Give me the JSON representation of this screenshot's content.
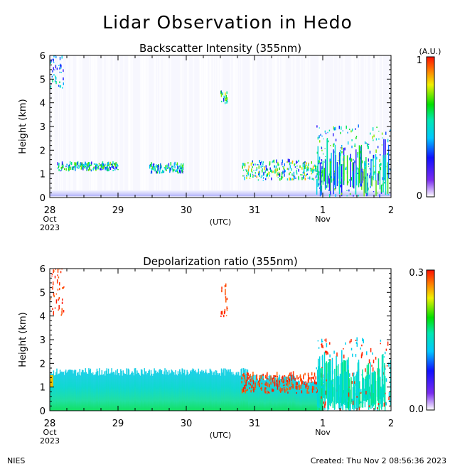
{
  "title": "Lidar Observation in Hedo",
  "footer": {
    "org": "NIES",
    "created": "Created: Thu Nov  2 08:56:36 2023"
  },
  "colors": {
    "axis": "#000000",
    "low": "#7b2cf0",
    "mid": "#00d0f0",
    "high": "#ff2200"
  },
  "chart_data": [
    {
      "type": "heatmap",
      "title": "Backscatter Intensity (355nm)",
      "ylabel": "Height (km)",
      "xlabel": "(UTC)",
      "ylim": [
        0,
        6
      ],
      "yticks": [
        "0",
        "1",
        "2",
        "3",
        "4",
        "5",
        "6"
      ],
      "xlim": [
        "2023-10-28",
        "2023-11-02"
      ],
      "xticks": [
        "28",
        "29",
        "30",
        "31",
        "1",
        "2"
      ],
      "xtick_sublabels": [
        [
          "Oct",
          "2023"
        ],
        [],
        [],
        [],
        [
          "Nov"
        ],
        []
      ],
      "colorbar": {
        "label": "(A.U.)",
        "min": "0",
        "max": "1"
      },
      "features": [
        {
          "name": "surface layer",
          "x": [
            0,
            5
          ],
          "y": [
            0,
            0.3
          ],
          "level": 0.25
        },
        {
          "name": "cloud layer",
          "x": [
            0.1,
            1.0
          ],
          "y": [
            1.1,
            1.4
          ],
          "level": 0.6
        },
        {
          "name": "cloud layer",
          "x": [
            1.45,
            1.95
          ],
          "y": [
            1.0,
            1.4
          ],
          "level": 0.6
        },
        {
          "name": "cloud layer",
          "x": [
            2.8,
            4.0
          ],
          "y": [
            0.7,
            1.5
          ],
          "level": 0.7
        },
        {
          "name": "upper cloud",
          "x": [
            2.5,
            2.6
          ],
          "y": [
            3.9,
            4.5
          ],
          "level": 0.7
        },
        {
          "name": "upper cloud",
          "x": [
            0.0,
            0.2
          ],
          "y": [
            4.6,
            6.0
          ],
          "level": 0.5
        },
        {
          "name": "convective cloud",
          "x": [
            3.9,
            5.0
          ],
          "y": [
            0.0,
            3.0
          ],
          "level": 0.6
        }
      ]
    },
    {
      "type": "heatmap",
      "title": "Depolarization ratio (355nm)",
      "ylabel": "Height (km)",
      "xlabel": "(UTC)",
      "ylim": [
        0,
        6
      ],
      "yticks": [
        "0",
        "1",
        "2",
        "3",
        "4",
        "5",
        "6"
      ],
      "xlim": [
        "2023-10-28",
        "2023-11-02"
      ],
      "xticks": [
        "28",
        "29",
        "30",
        "31",
        "1",
        "2"
      ],
      "xtick_sublabels": [
        [
          "Oct",
          "2023"
        ],
        [],
        [],
        [],
        [
          "Nov"
        ],
        []
      ],
      "colorbar": {
        "label": "",
        "min": "0.0",
        "max": "0.3"
      },
      "features": [
        {
          "name": "aerosol layer",
          "x": [
            0,
            3.6
          ],
          "y": [
            0,
            1.8
          ],
          "level": 0.12
        },
        {
          "name": "aerosol layer",
          "x": [
            3.6,
            4.0
          ],
          "y": [
            0,
            1.3
          ],
          "level": 0.15
        },
        {
          "name": "cloud layer",
          "x": [
            2.8,
            4.0
          ],
          "y": [
            0.7,
            1.5
          ],
          "level": 0.3
        },
        {
          "name": "upper cloud",
          "x": [
            2.5,
            2.6
          ],
          "y": [
            3.9,
            5.3
          ],
          "level": 0.3
        },
        {
          "name": "upper cloud",
          "x": [
            0.0,
            0.2
          ],
          "y": [
            4.0,
            6.0
          ],
          "level": 0.3
        },
        {
          "name": "convective cloud",
          "x": [
            3.9,
            5.0
          ],
          "y": [
            0.0,
            3.0
          ],
          "level": 0.2
        }
      ]
    }
  ]
}
